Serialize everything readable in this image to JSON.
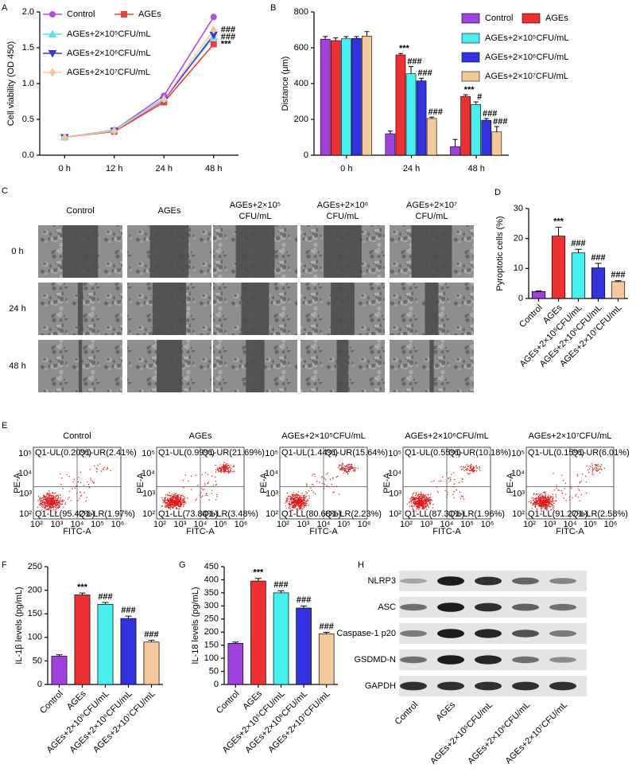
{
  "chart_data": [
    {
      "panel": "A",
      "type": "line",
      "y_label": "Cell viability (OD 450)",
      "categories": [
        "0 h",
        "12 h",
        "24 h",
        "48 h"
      ],
      "ylim": [
        0,
        2
      ],
      "yticks": [
        {
          "value": 0,
          "label": "0.0"
        },
        0.5,
        {
          "value": 1,
          "label": "1.0"
        },
        1.5,
        {
          "value": 2,
          "label": "2.0"
        }
      ],
      "series": [
        {
          "name": "Control",
          "color": "#b04ee0",
          "marker": "circle",
          "values": [
            0.25,
            0.35,
            0.83,
            1.93
          ],
          "significance": [
            null,
            null,
            null,
            null
          ]
        },
        {
          "name": "AGEs",
          "color": "#f03c3c",
          "marker": "square",
          "values": [
            0.25,
            0.33,
            0.74,
            1.55
          ],
          "significance": [
            null,
            null,
            null,
            "***"
          ]
        },
        {
          "name": "AGEs+2×10⁵CFU/mL",
          "color": "#4ee6e6",
          "marker": "triangle-up",
          "values": [
            0.25,
            0.35,
            0.79,
            1.65
          ],
          "significance": [
            null,
            null,
            null,
            "###"
          ]
        },
        {
          "name": "AGEs+2×10⁶CFU/mL",
          "color": "#3636e0",
          "marker": "triangle-down",
          "values": [
            0.25,
            0.34,
            0.77,
            1.68
          ],
          "significance": [
            null,
            null,
            null,
            null
          ]
        },
        {
          "name": "AGEs+2×10⁷CFU/mL",
          "color": "#f7c6a0",
          "marker": "diamond",
          "values": [
            0.25,
            0.34,
            0.78,
            1.75
          ],
          "significance": [
            null,
            null,
            null,
            "###"
          ]
        }
      ]
    },
    {
      "panel": "B",
      "type": "grouped-bar",
      "y_label": "Distance (μm)",
      "categories": [
        "0 h",
        "24 h",
        "48 h"
      ],
      "ylim": [
        0,
        800
      ],
      "yticks": [
        0,
        200,
        400,
        600,
        800
      ],
      "series": [
        {
          "name": "Control",
          "color": "#a040e0",
          "values": [
            648,
            120,
            48
          ],
          "errors": [
            15,
            15,
            40
          ],
          "significance": [
            null,
            null,
            null
          ]
        },
        {
          "name": "AGEs",
          "color": "#ee3030",
          "values": [
            640,
            560,
            328
          ],
          "errors": [
            15,
            8,
            10
          ],
          "significance": [
            null,
            "***",
            "***"
          ]
        },
        {
          "name": "AGEs+2×10⁵CFU/mL",
          "color": "#44f0f0",
          "values": [
            650,
            455,
            283
          ],
          "errors": [
            12,
            40,
            15
          ],
          "significance": [
            null,
            "###",
            "#"
          ]
        },
        {
          "name": "AGEs+2×10⁶CFU/mL",
          "color": "#3232e0",
          "values": [
            652,
            415,
            195
          ],
          "errors": [
            10,
            15,
            10
          ],
          "significance": [
            null,
            "###",
            "###"
          ]
        },
        {
          "name": "AGEs+2×10⁷CFU/mL",
          "color": "#f5c89a",
          "values": [
            665,
            205,
            130
          ],
          "errors": [
            25,
            8,
            30
          ],
          "significance": [
            null,
            "###",
            "###"
          ]
        }
      ]
    },
    {
      "panel": "D",
      "type": "bar",
      "y_label": "Pyroptotic cells (%)",
      "categories": [
        "Control",
        "AGEs",
        "AGEs+2×10⁵CFU/mL",
        "AGEs+2×10⁶CFU/mL",
        "AGEs+2×10⁷CFU/mL"
      ],
      "values": [
        2.3,
        20.8,
        15.2,
        10.2,
        5.6
      ],
      "errors": [
        0.2,
        3,
        1.2,
        1.5,
        0.3
      ],
      "colors": [
        "#a040e0",
        "#ee3030",
        "#44f0f0",
        "#3232e0",
        "#f5c89a"
      ],
      "significance": [
        null,
        "***",
        "###",
        "###",
        "###"
      ],
      "ylim": [
        0,
        30
      ],
      "yticks": [
        0,
        10,
        20,
        30
      ]
    },
    {
      "panel": "F",
      "type": "bar",
      "y_label": "IL-1β levels (pg/mL)",
      "categories": [
        "Control",
        "AGEs",
        "AGEs+2×10⁵CFU/mL",
        "AGEs+2×10⁶CFU/mL",
        "AGEs+2×10⁷CFU/mL"
      ],
      "values": [
        60,
        190,
        170,
        140,
        90
      ],
      "errors": [
        3,
        4,
        4,
        5,
        4
      ],
      "colors": [
        "#a040e0",
        "#ee3030",
        "#44f0f0",
        "#3232e0",
        "#f5c89a"
      ],
      "significance": [
        null,
        "***",
        "###",
        "###",
        "###"
      ],
      "ylim": [
        0,
        250
      ],
      "yticks": [
        0,
        50,
        100,
        150,
        200,
        250
      ]
    },
    {
      "panel": "G",
      "type": "bar",
      "y_label": "IL-18 levels (pg/mL)",
      "categories": [
        "Control",
        "AGEs",
        "AGEs+2×10⁵CFU/mL",
        "AGEs+2×10⁶CFU/mL",
        "AGEs+2×10⁷CFU/mL"
      ],
      "values": [
        157,
        395,
        350,
        292,
        193
      ],
      "errors": [
        5,
        10,
        8,
        8,
        6
      ],
      "colors": [
        "#a040e0",
        "#ee3030",
        "#44f0f0",
        "#3232e0",
        "#f5c89a"
      ],
      "significance": [
        null,
        "***",
        "###",
        "###",
        "###"
      ],
      "ylim": [
        0,
        450
      ],
      "yticks": [
        0,
        50,
        100,
        150,
        200,
        250,
        300,
        350,
        400,
        450
      ]
    }
  ],
  "wound_healing": {
    "panel": "C",
    "columns": [
      [
        "Control"
      ],
      [
        "AGEs"
      ],
      [
        "AGEs+2×10⁵",
        "CFU/mL"
      ],
      [
        "AGEs+2×10⁶",
        "CFU/mL"
      ],
      [
        "AGEs+2×10⁷",
        "CFU/mL"
      ]
    ],
    "rows": [
      "0 h",
      "24 h",
      "48 h"
    ]
  },
  "flow_cytometry": {
    "panel": "E",
    "x_label": "FITC-A",
    "y_label": "PE-A",
    "x_ticks": [
      "10²",
      "10³",
      "10⁴",
      "10⁵",
      "10⁶"
    ],
    "y_ticks": [
      "10²",
      "10³",
      "10⁴",
      "10⁵"
    ],
    "plots": [
      {
        "title": "Control",
        "quadrants": {
          "UL": "Q1-UL(0.20%)",
          "UR": "Q1-UR(2.41%)",
          "LL": "Q1-LL(95.42%)",
          "LR": "Q1-LR(1.97%)"
        }
      },
      {
        "title": "AGEs",
        "quadrants": {
          "UL": "Q1-UL(0.99%)",
          "UR": "Q1-UR(21.69%)",
          "LL": "Q1-LL(73.84%)",
          "LR": "Q1-LR(3.48%)"
        }
      },
      {
        "title": "AGEs+2×10⁵CFU/mL",
        "quadrants": {
          "UL": "Q1-UL(1.44%)",
          "UR": "Q1-UR(15.64%)",
          "LL": "Q1-LL(80.68%)",
          "LR": "Q1-LR(2.23%)"
        }
      },
      {
        "title": "AGEs+2×10⁶CFU/mL",
        "quadrants": {
          "UL": "Q1-UL(0.55%)",
          "UR": "Q1-UR(10.18%)",
          "LL": "Q1-LL(87.31%)",
          "LR": "Q1-LR(1.96%)"
        }
      },
      {
        "title": "AGEs+2×10⁷CFU/mL",
        "quadrants": {
          "UL": "Q1-UL(0.15%)",
          "UR": "Q1-UR(6.01%)",
          "LL": "Q1-LL(91.27%)",
          "LR": "Q1-LR(2.58%)"
        }
      }
    ]
  },
  "western_blot": {
    "panel": "H",
    "proteins": [
      "NLRP3",
      "ASC",
      "Caspase-1 p20",
      "GSDMD-N",
      "GAPDH"
    ],
    "lanes": [
      "Control",
      "AGEs",
      "AGEs+2×10⁵CFU/mL",
      "AGEs+2×10⁶CFU/mL",
      "AGEs+2×10⁷CFU/mL"
    ]
  }
}
